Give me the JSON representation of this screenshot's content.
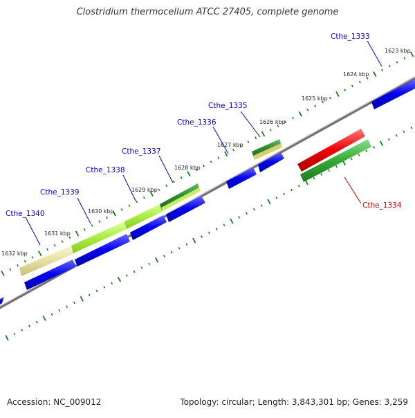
{
  "title": "Clostridium thermocellum ATCC 27405, complete genome",
  "footer": {
    "accession": "Accession: NC_009012",
    "summary": "Topology: circular; Length: 3,843,301 bp; Genes: 3,259"
  },
  "kbp_labels": [
    "1623 kbp",
    "1624 kbp",
    "1625 kbp",
    "1626 kbp",
    "1627 kbp",
    "1628 kbp",
    "1629 kbp",
    "1630 kbp",
    "1631 kbp",
    "1632 kbp"
  ],
  "gene_labels": [
    "Cthe_1333",
    "Cthe_1334",
    "Cthe_1335",
    "Cthe_1336",
    "Cthe_1337",
    "Cthe_1338",
    "Cthe_1339",
    "Cthe_1340"
  ],
  "colors": {
    "forward_gene": "#0000ee",
    "reverse_gene": "#ee0000",
    "forward_label": "#0000cc",
    "reverse_label": "#cc0000",
    "tick": "#1a7a1a",
    "backbone": "#808080",
    "hit_green": "#33aa33",
    "hit_lime": "#aaee44",
    "hit_tan": "#e8e0a0"
  }
}
